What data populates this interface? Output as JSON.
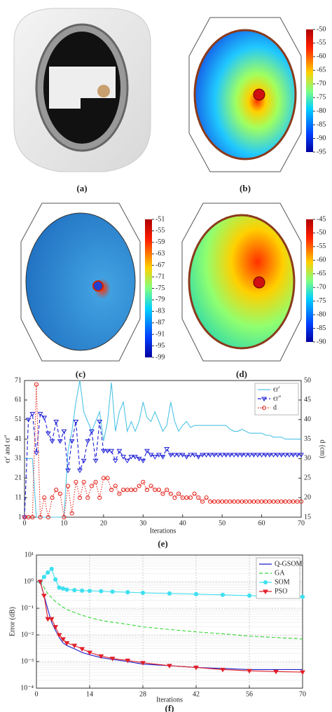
{
  "panels": [
    {
      "label": "(a)"
    },
    {
      "label": "(b)",
      "colorbar": [
        -50,
        -55,
        -60,
        -65,
        -70,
        -75,
        -80,
        -85,
        -90,
        -95
      ]
    },
    {
      "label": "(c)",
      "colorbar": [
        -51,
        -55,
        -59,
        -63,
        -67,
        -71,
        -75,
        -79,
        -83,
        -87,
        -91,
        -95,
        -99
      ]
    },
    {
      "label": "(d)",
      "colorbar": [
        -45,
        -50,
        -55,
        -60,
        -65,
        -70,
        -75,
        -80,
        -85,
        -90
      ]
    }
  ],
  "chart_data": [
    {
      "type": "line",
      "label": "(e)",
      "xlabel": "Iterations",
      "ylabel": "ϵr′ and ϵr″",
      "y2label": "d (cm)",
      "x": [
        0,
        1,
        2,
        3,
        4,
        5,
        6,
        7,
        8,
        9,
        10,
        11,
        12,
        13,
        14,
        15,
        16,
        17,
        18,
        19,
        20,
        21,
        22,
        23,
        24,
        25,
        26,
        27,
        28,
        29,
        30,
        31,
        32,
        33,
        34,
        35,
        36,
        37,
        38,
        39,
        40,
        41,
        42,
        43,
        44,
        45,
        46,
        47,
        48,
        49,
        50,
        51,
        52,
        53,
        54,
        55,
        56,
        57,
        58,
        59,
        60,
        61,
        62,
        63,
        64,
        65,
        66,
        67,
        68,
        69,
        70
      ],
      "xlim": [
        0,
        70
      ],
      "xticks": [
        0,
        10,
        20,
        30,
        40,
        50,
        60,
        70
      ],
      "ylim": [
        1,
        71
      ],
      "yticks": [
        1,
        11,
        21,
        31,
        41,
        51,
        61,
        71
      ],
      "y2lim": [
        15,
        50
      ],
      "y2ticks": [
        15,
        20,
        25,
        30,
        35,
        40,
        45,
        50
      ],
      "legend": "upper right",
      "grid": false,
      "series": [
        {
          "name": "ϵr′",
          "color": "#4ec3e6",
          "linestyle": "solid",
          "marker": "none",
          "values": [
            31,
            31,
            31,
            1,
            1,
            1,
            1,
            1,
            1,
            1,
            1,
            35,
            45,
            60,
            71,
            55,
            50,
            45,
            50,
            55,
            40,
            50,
            70,
            45,
            55,
            60,
            45,
            50,
            45,
            50,
            60,
            52,
            50,
            55,
            50,
            45,
            48,
            60,
            50,
            45,
            48,
            50,
            47,
            48,
            48,
            48,
            48,
            48,
            48,
            48,
            48,
            48,
            46,
            45,
            45,
            46,
            45,
            44,
            44,
            44,
            44,
            43,
            43,
            42,
            42,
            42,
            41,
            41,
            41,
            41,
            41
          ]
        },
        {
          "name": "ϵr″",
          "color": "#1f1fd6",
          "linestyle": "dashed",
          "marker": "triangle",
          "values": [
            1,
            51,
            54,
            34,
            54,
            52,
            44,
            40,
            50,
            40,
            45,
            25,
            40,
            50,
            25,
            30,
            40,
            45,
            30,
            50,
            35,
            35,
            35,
            30,
            35,
            32,
            30,
            32,
            32,
            31,
            30,
            35,
            33,
            32,
            33,
            32,
            36,
            33,
            33,
            33,
            33,
            32,
            33,
            33,
            32,
            33,
            33,
            33,
            33,
            33,
            33,
            33,
            33,
            33,
            33,
            33,
            33,
            33,
            33,
            33,
            33,
            33,
            33,
            33,
            33,
            33,
            33,
            33,
            33,
            33,
            33
          ]
        },
        {
          "name": "d",
          "color": "#e3241c",
          "linestyle": "dotted",
          "marker": "circle",
          "axis": "y2",
          "values": [
            15,
            15,
            15,
            49,
            15,
            20,
            15,
            20,
            22,
            21,
            15,
            23,
            16,
            24,
            20,
            24,
            20,
            23,
            24,
            20,
            25,
            25,
            22,
            23,
            21,
            22,
            22,
            22,
            22,
            23,
            24,
            22,
            23,
            22,
            22,
            21,
            22,
            21,
            20,
            21,
            20,
            20,
            20,
            21,
            20,
            19,
            20,
            19,
            19,
            19,
            19,
            19,
            19,
            19,
            19,
            19,
            19,
            19,
            19,
            19,
            19,
            19,
            19,
            19,
            19,
            19,
            19,
            19,
            19,
            19,
            19
          ]
        }
      ]
    },
    {
      "type": "line",
      "label": "(f)",
      "xlabel": "Iterations",
      "ylabel": "Error (dB)",
      "log_y": true,
      "x": [
        1,
        2,
        3,
        4,
        5,
        6,
        7,
        8,
        10,
        12,
        14,
        17,
        20,
        24,
        28,
        35,
        42,
        49,
        56,
        63,
        70
      ],
      "xlim": [
        0,
        70
      ],
      "xticks": [
        0,
        14,
        28,
        42,
        56,
        70
      ],
      "ylim": [
        0.0001,
        10
      ],
      "yticks": [
        {
          "value": 0.0001,
          "label": "10⁻⁴"
        },
        {
          "value": 0.001,
          "label": "10⁻³"
        },
        {
          "value": 0.01,
          "label": "10⁻²"
        },
        {
          "value": 0.1,
          "label": "10⁻¹"
        },
        {
          "value": 1,
          "label": "10⁰"
        },
        {
          "value": 10,
          "label": "10¹"
        }
      ],
      "legend": "upper right",
      "grid": true,
      "series": [
        {
          "name": "Q-GSOM",
          "color": "#1c1cc8",
          "linestyle": "solid",
          "marker": "none",
          "values": [
            1,
            0.3,
            0.09,
            0.03,
            0.015,
            0.008,
            0.005,
            0.004,
            0.003,
            0.0022,
            0.0018,
            0.0014,
            0.0012,
            0.001,
            0.0008,
            0.0007,
            0.0006,
            0.00055,
            0.0005,
            0.0005,
            0.0005
          ]
        },
        {
          "name": "GA",
          "color": "#35d635",
          "linestyle": "dashed",
          "marker": "none",
          "values": [
            1,
            0.6,
            0.35,
            0.25,
            0.18,
            0.14,
            0.11,
            0.09,
            0.07,
            0.055,
            0.045,
            0.035,
            0.03,
            0.025,
            0.02,
            0.016,
            0.013,
            0.011,
            0.009,
            0.008,
            0.007
          ]
        },
        {
          "name": "SOM",
          "color": "#3ee0f0",
          "linestyle": "solid",
          "marker": "circle",
          "values": [
            1,
            1.5,
            2.2,
            3,
            1.2,
            0.6,
            0.55,
            0.5,
            0.48,
            0.46,
            0.45,
            0.44,
            0.42,
            0.4,
            0.38,
            0.36,
            0.34,
            0.32,
            0.3,
            0.28,
            0.27
          ]
        },
        {
          "name": "PSO",
          "color": "#e0202a",
          "linestyle": "solid",
          "marker": "triangle",
          "values": [
            1,
            0.3,
            0.04,
            0.04,
            0.02,
            0.01,
            0.007,
            0.005,
            0.004,
            0.003,
            0.0022,
            0.0016,
            0.0013,
            0.0011,
            0.0009,
            0.0007,
            0.0006,
            0.0005,
            0.00045,
            0.00042,
            0.0004
          ]
        }
      ]
    }
  ]
}
